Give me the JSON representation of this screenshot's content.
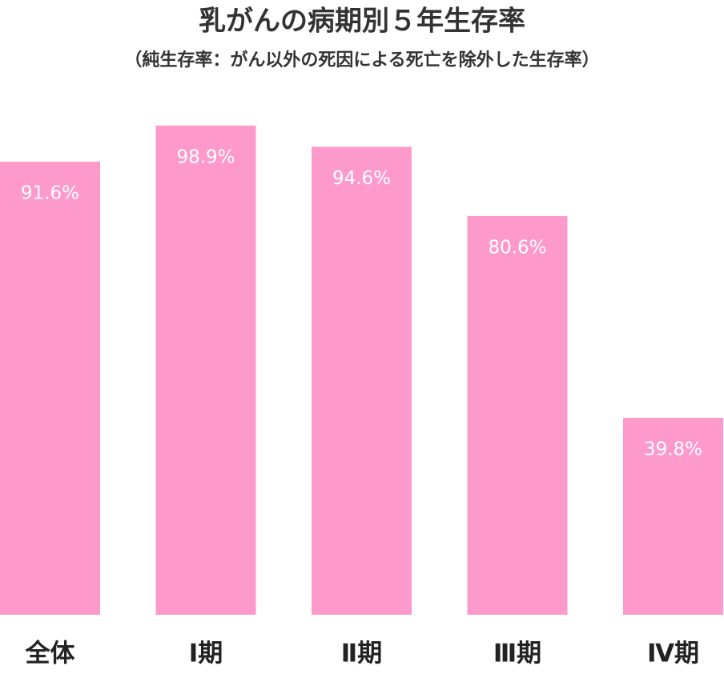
{
  "chart_data": {
    "type": "bar",
    "title": "乳がんの病期別５年生存率",
    "subtitle": "（純生存率：がん以外の死因による死亡を除外した生存率）",
    "categories": [
      "全体",
      "Ⅰ期",
      "Ⅱ期",
      "Ⅲ期",
      "Ⅳ期"
    ],
    "values": [
      91.6,
      98.9,
      94.6,
      80.6,
      39.8
    ],
    "value_labels": [
      "91.6%",
      "98.9%",
      "94.6%",
      "80.6%",
      "39.8%"
    ],
    "color": "#fe9acb",
    "ylim": [
      0,
      100
    ]
  }
}
